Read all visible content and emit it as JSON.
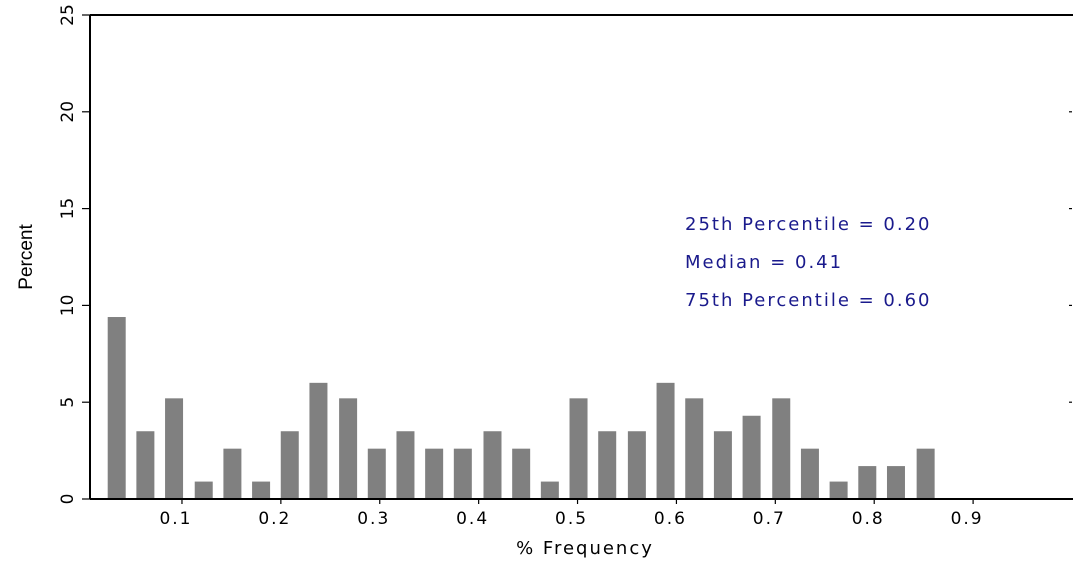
{
  "chart_data": {
    "type": "bar",
    "x_label": "% Frequency",
    "y_label": "Percent",
    "annotations": [
      "25th Percentile = 0.20",
      "Median = 0.41",
      "75th Percentile = 0.60"
    ],
    "x": [
      0.034,
      0.063,
      0.092,
      0.122,
      0.151,
      0.18,
      0.209,
      0.238,
      0.268,
      0.297,
      0.326,
      0.355,
      0.384,
      0.414,
      0.443,
      0.472,
      0.501,
      0.53,
      0.56,
      0.589,
      0.618,
      0.647,
      0.676,
      0.706,
      0.735,
      0.764,
      0.793,
      0.822,
      0.852
    ],
    "values": [
      9.4,
      3.5,
      5.2,
      0.9,
      2.6,
      0.9,
      3.5,
      6.0,
      5.2,
      2.6,
      3.5,
      2.6,
      2.6,
      3.5,
      2.6,
      0.9,
      5.2,
      3.5,
      3.5,
      6.0,
      5.2,
      3.5,
      4.3,
      5.2,
      2.6,
      0.9,
      1.7,
      1.7,
      2.6
    ],
    "color": "#808080",
    "annotation_color": "#1a1a8c",
    "xlim": [
      0.007,
      1.0
    ],
    "xticks": [
      0.1,
      0.2,
      0.3,
      0.4,
      0.5,
      0.6,
      0.7,
      0.8,
      0.9
    ],
    "ylim": [
      0,
      25
    ],
    "yticks": [
      0,
      5,
      10,
      15,
      20,
      25
    ]
  }
}
